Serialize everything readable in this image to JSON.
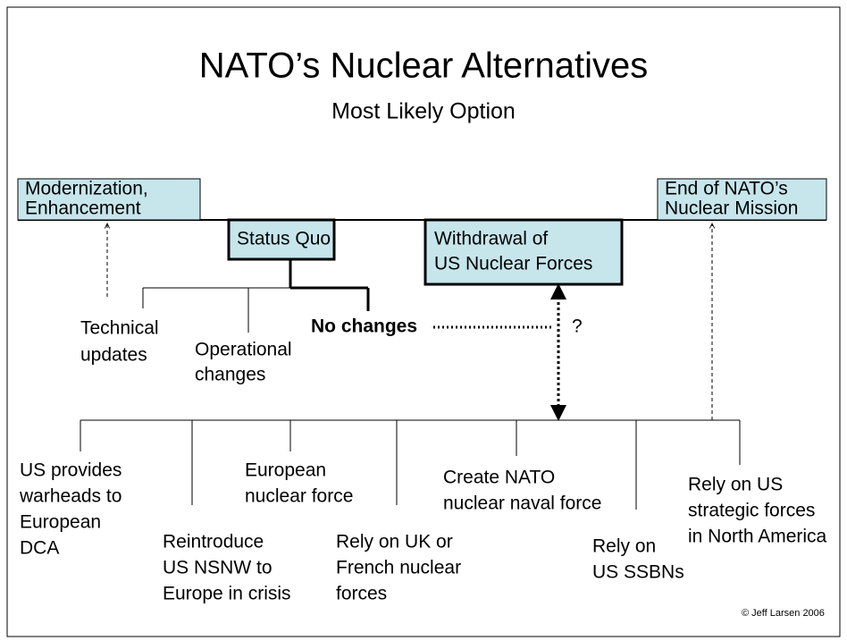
{
  "title": "NATO’s Nuclear Alternatives",
  "subtitle": "Most Likely Option",
  "boxes": {
    "modernization": [
      "Modernization,",
      "Enhancement"
    ],
    "end_mission": [
      "End of NATO’s",
      "Nuclear Mission"
    ],
    "status_quo": [
      "Status Quo"
    ],
    "withdrawal": [
      "Withdrawal of",
      "US Nuclear Forces"
    ]
  },
  "status_quo_options": {
    "technical": [
      "Technical",
      "updates"
    ],
    "operational": [
      "Operational",
      "changes"
    ],
    "no_changes": [
      "No changes"
    ],
    "question": [
      "?"
    ]
  },
  "withdrawal_options": [
    [
      "US provides",
      "warheads to",
      "European",
      "DCA"
    ],
    [
      "Reintroduce",
      "US NSNW to",
      "Europe in crisis"
    ],
    [
      "European",
      "nuclear force"
    ],
    [
      "Rely on UK or",
      "French nuclear",
      "forces"
    ],
    [
      "Create NATO",
      "nuclear naval force"
    ],
    [
      "Rely on",
      "US SSBNs"
    ],
    [
      "Rely on US",
      "strategic forces",
      "in North America"
    ]
  ],
  "copyright": "© Jeff Larsen 2006"
}
